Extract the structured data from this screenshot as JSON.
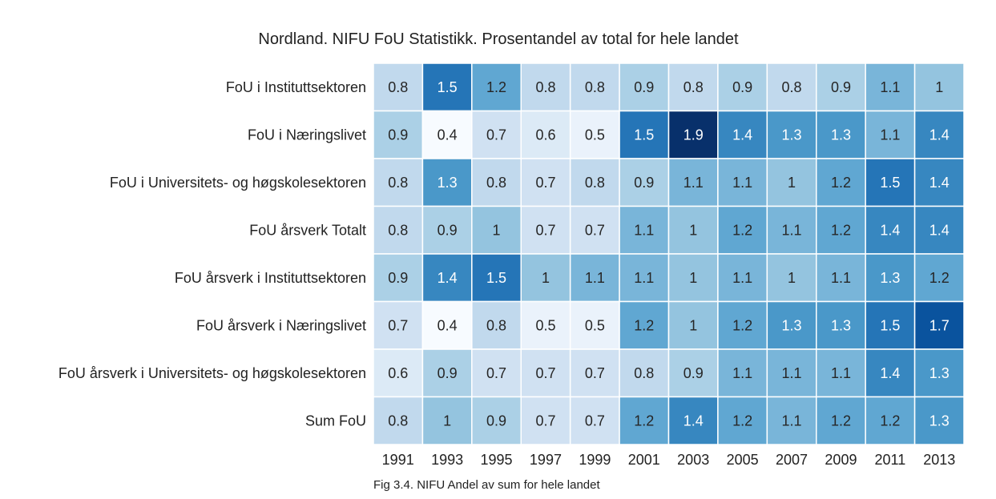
{
  "chart_data": {
    "type": "heatmap",
    "title": "Nordland. NIFU FoU Statistikk. Prosentandel av total for hele landet",
    "caption": "Fig 3.4. NIFU Andel av sum for hele landet",
    "colormap": "Blues",
    "vmin": 0.4,
    "vmax": 1.9,
    "columns": [
      "1991",
      "1993",
      "1995",
      "1997",
      "1999",
      "2001",
      "2003",
      "2005",
      "2007",
      "2009",
      "2011",
      "2013"
    ],
    "rows": [
      "FoU i Instituttsektoren",
      "FoU i Næringslivet",
      "FoU i Universitets- og høgskolesektoren",
      "FoU årsverk Totalt",
      "FoU årsverk i Instituttsektoren",
      "FoU årsverk i Næringslivet",
      "FoU årsverk i Universitets- og høgskolesektoren",
      "Sum FoU"
    ],
    "values": [
      [
        0.8,
        1.5,
        1.2,
        0.8,
        0.8,
        0.9,
        0.8,
        0.9,
        0.8,
        0.9,
        1.1,
        1
      ],
      [
        0.9,
        0.4,
        0.7,
        0.6,
        0.5,
        1.5,
        1.9,
        1.4,
        1.3,
        1.3,
        1.1,
        1.4
      ],
      [
        0.8,
        1.3,
        0.8,
        0.7,
        0.8,
        0.9,
        1.1,
        1.1,
        1,
        1.2,
        1.5,
        1.4
      ],
      [
        0.8,
        0.9,
        1,
        0.7,
        0.7,
        1.1,
        1,
        1.2,
        1.1,
        1.2,
        1.4,
        1.4
      ],
      [
        0.9,
        1.4,
        1.5,
        1,
        1.1,
        1.1,
        1,
        1.1,
        1,
        1.1,
        1.3,
        1.2
      ],
      [
        0.7,
        0.4,
        0.8,
        0.5,
        0.5,
        1.2,
        1,
        1.2,
        1.3,
        1.3,
        1.5,
        1.7
      ],
      [
        0.6,
        0.9,
        0.7,
        0.7,
        0.7,
        0.8,
        0.9,
        1.1,
        1.1,
        1.1,
        1.4,
        1.3
      ],
      [
        0.8,
        1,
        0.9,
        0.7,
        0.7,
        1.2,
        1.4,
        1.2,
        1.1,
        1.2,
        1.2,
        1.3
      ]
    ]
  }
}
